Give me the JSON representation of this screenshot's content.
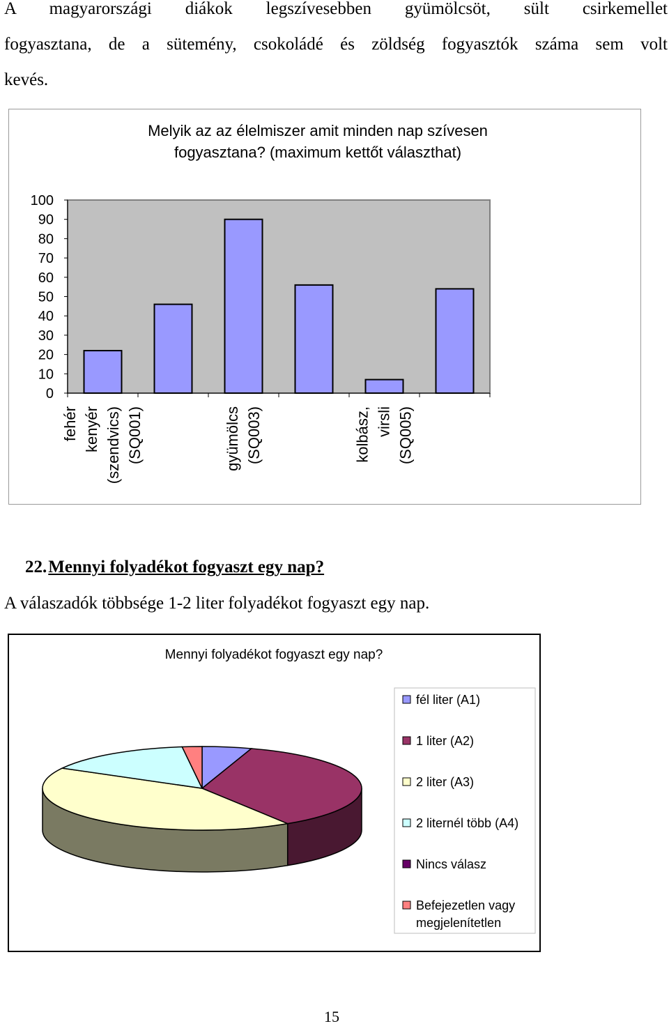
{
  "intro": {
    "line1": "A magyarországi diákok legszívesebben gyümölcsöt, sült csirkemellet",
    "line2": "fogyasztana, de a sütemény, csokoládé és zöldség fogyasztók száma sem volt",
    "line3": "kevés."
  },
  "bar_chart": {
    "title_line1": "Melyik az az élelmiszer amit minden nap szívesen",
    "title_line2": "fogyasztana? (maximum kettőt választhat)",
    "bar_color": "#9999ff",
    "plot_bg": "#c0c0c0",
    "chart_data": {
      "type": "bar",
      "ylim": [
        0,
        100
      ],
      "yticks": [
        "100",
        "90",
        "80",
        "70",
        "60",
        "50",
        "40",
        "30",
        "20",
        "10",
        "0"
      ],
      "values": [
        22,
        46,
        90,
        56,
        7,
        54
      ],
      "labeled_categories": [
        {
          "index": 0,
          "lines": [
            "fehér",
            "kenyér",
            "(szendvics)",
            "(SQ001)"
          ]
        },
        {
          "index": 2,
          "lines": [
            "gyümölcs",
            "(SQ003)"
          ]
        },
        {
          "index": 4,
          "lines": [
            "kolbász,",
            "virsli",
            "(SQ005)"
          ]
        }
      ]
    }
  },
  "section": {
    "number": "22.",
    "question": "Mennyi folyadékot fogyaszt egy nap?",
    "summary": "A válaszadók többsége 1-2 liter folyadékot fogyaszt egy nap."
  },
  "pie_chart": {
    "title": "Mennyi folyadékot fogyaszt egy nap?",
    "chart_data": {
      "type": "pie",
      "slices": [
        {
          "label": "fél liter (A1)",
          "value": 5,
          "color": "#9999ff"
        },
        {
          "label": "1 liter (A2)",
          "value": 36,
          "color": "#993366"
        },
        {
          "label": "2 liter (A3)",
          "value": 42,
          "color": "#ffffcc"
        },
        {
          "label": "2 liternél több (A4)",
          "value": 15,
          "color": "#ccffff"
        },
        {
          "label": "Nincs válasz",
          "value": 0,
          "color": "#660066"
        },
        {
          "label": "Befejezetlen vagy megjelenítetlen",
          "value": 2,
          "color": "#ff8080",
          "label_lines": [
            "Befejezetlen vagy",
            "megjelenítetlen"
          ]
        }
      ],
      "legend_position": "right"
    }
  },
  "page_number": "15"
}
